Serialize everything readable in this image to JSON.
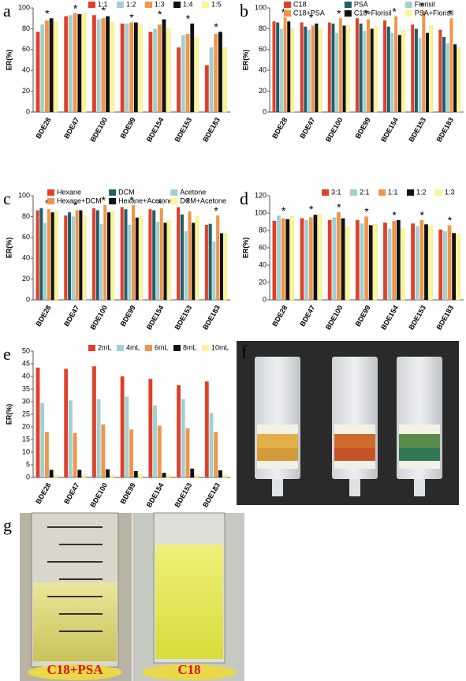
{
  "chart_data": [
    {
      "type": "bar",
      "label": "a",
      "ylabel": "ER(%)",
      "categories": [
        "BDE28",
        "BDE47",
        "BDE100",
        "BDE99",
        "BDE154",
        "BDE153",
        "BDE183"
      ],
      "series": [
        {
          "name": "1:1",
          "color": "#e0402a",
          "values": [
            77,
            92,
            93,
            85,
            77,
            62,
            45
          ]
        },
        {
          "name": "1:2",
          "color": "#9fd0d3",
          "values": [
            84,
            93,
            89,
            85,
            80,
            74,
            62
          ]
        },
        {
          "name": "1:3",
          "color": "#f0954a",
          "values": [
            88,
            95,
            90,
            86,
            84,
            75,
            75
          ]
        },
        {
          "name": "1:4",
          "color": "#111111",
          "values": [
            90,
            94,
            92,
            86,
            89,
            85,
            77
          ]
        },
        {
          "name": "1:5",
          "color": "#fbf59a",
          "values": [
            86,
            95,
            86,
            84,
            80,
            72,
            62
          ]
        }
      ],
      "annotations": [
        "*",
        "*",
        "*",
        "*",
        "*",
        "*",
        "*"
      ],
      "ylim": [
        0,
        100
      ],
      "yticks": [
        0,
        20,
        40,
        60,
        80,
        100
      ]
    },
    {
      "type": "bar",
      "label": "b",
      "ylabel": "ER(%)",
      "categories": [
        "BDE28",
        "BDE47",
        "BDE100",
        "BDE99",
        "BDE154",
        "BDE153",
        "BDE183"
      ],
      "series": [
        {
          "name": "C18",
          "color": "#e0402a",
          "values": [
            87,
            86,
            86,
            90,
            88,
            84,
            79
          ]
        },
        {
          "name": "PSA",
          "color": "#1f5f6a",
          "values": [
            86,
            82,
            85,
            85,
            82,
            80,
            72
          ]
        },
        {
          "name": "Florisil",
          "color": "#9fd0d3",
          "values": [
            80,
            79,
            76,
            78,
            76,
            71,
            66
          ]
        },
        {
          "name": "C18+PSA",
          "color": "#f0954a",
          "values": [
            91,
            83,
            90,
            89,
            92,
            97,
            90
          ]
        },
        {
          "name": "C18+Florisil",
          "color": "#111111",
          "values": [
            87,
            85,
            83,
            80,
            74,
            76,
            65
          ]
        },
        {
          "name": "PSA+Florisil",
          "color": "#fbf59a",
          "values": [
            80,
            80,
            83,
            82,
            78,
            83,
            62
          ]
        }
      ],
      "annotations": [
        "*",
        "*",
        "*",
        "*",
        "*",
        "*",
        "*"
      ],
      "ylim": [
        0,
        100
      ],
      "yticks": [
        0,
        20,
        40,
        60,
        80,
        100
      ]
    },
    {
      "type": "bar",
      "label": "c",
      "ylabel": "ER(%)",
      "categories": [
        "BDE28",
        "BDE47",
        "BDE100",
        "BDE99",
        "BDE154",
        "BDE153",
        "BDE183"
      ],
      "series": [
        {
          "name": "Hexane",
          "color": "#e0402a",
          "values": [
            86,
            81,
            88,
            89,
            87,
            89,
            72
          ]
        },
        {
          "name": "DCM",
          "color": "#1f5f6a",
          "values": [
            88,
            84,
            86,
            87,
            86,
            82,
            73
          ]
        },
        {
          "name": "Acetone",
          "color": "#9fd0d3",
          "values": [
            74,
            80,
            73,
            72,
            75,
            66,
            56
          ]
        },
        {
          "name": "Hexane+DCM",
          "color": "#f0954a",
          "values": [
            87,
            86,
            91,
            91,
            88,
            85,
            81
          ]
        },
        {
          "name": "Hexane+Acetone",
          "color": "#111111",
          "values": [
            84,
            86,
            84,
            79,
            74,
            74,
            64
          ]
        },
        {
          "name": "DCM+Acetone",
          "color": "#fbf59a",
          "values": [
            85,
            81,
            85,
            80,
            76,
            80,
            64
          ]
        }
      ],
      "annotations": [
        "*",
        "*",
        "*",
        "*",
        "*",
        "*",
        "*"
      ],
      "ylim": [
        0,
        100
      ],
      "yticks": [
        0,
        20,
        40,
        60,
        80,
        100
      ]
    },
    {
      "type": "bar",
      "label": "d",
      "ylabel": "ER(%)",
      "categories": [
        "BDE28",
        "BDE47",
        "BDE100",
        "BDE99",
        "BDE154",
        "BDE153",
        "BDE183"
      ],
      "series": [
        {
          "name": "3:1",
          "color": "#e0402a",
          "values": [
            91,
            94,
            92,
            92,
            89,
            88,
            81
          ]
        },
        {
          "name": "2:1",
          "color": "#9fd0d3",
          "values": [
            97,
            92,
            95,
            88,
            82,
            85,
            79
          ]
        },
        {
          "name": "1:1",
          "color": "#f0954a",
          "values": [
            94,
            95,
            101,
            96,
            91,
            92,
            86
          ]
        },
        {
          "name": "1:2",
          "color": "#111111",
          "values": [
            93,
            98,
            94,
            86,
            92,
            87,
            77
          ]
        },
        {
          "name": "1:3",
          "color": "#fbf59a",
          "values": [
            96,
            99,
            84,
            87,
            82,
            85,
            76
          ]
        }
      ],
      "annotations": [
        "*",
        "*",
        "*",
        "*",
        "*",
        "*",
        "*"
      ],
      "ylim": [
        0,
        120
      ],
      "yticks": [
        0,
        20,
        40,
        60,
        80,
        100,
        120
      ]
    },
    {
      "type": "bar",
      "label": "e",
      "ylabel": "ER(%)",
      "categories": [
        "BDE28",
        "BDE47",
        "BDE100",
        "BDE99",
        "BDE154",
        "BDE153",
        "BDE183"
      ],
      "series": [
        {
          "name": "2mL",
          "color": "#e0402a",
          "values": [
            43.5,
            43,
            44,
            40,
            39,
            36.5,
            38
          ]
        },
        {
          "name": "4mL",
          "color": "#9fd0d3",
          "values": [
            29.5,
            30.5,
            31,
            32,
            28.5,
            31,
            25.5
          ]
        },
        {
          "name": "6mL",
          "color": "#f0954a",
          "values": [
            18,
            17.5,
            21,
            19,
            20.5,
            19.5,
            18
          ]
        },
        {
          "name": "8mL",
          "color": "#111111",
          "values": [
            3,
            3,
            3.2,
            2.5,
            1.8,
            3.5,
            2.8
          ]
        },
        {
          "name": "10mL",
          "color": "#fbf59a",
          "values": [
            1,
            1,
            1,
            1.2,
            1,
            1,
            1
          ]
        }
      ],
      "ylim": [
        0,
        50
      ],
      "yticks": [
        0,
        5,
        10,
        15,
        20,
        25,
        30,
        35,
        40,
        45,
        50
      ]
    }
  ],
  "photos": {
    "f": {
      "label": "f"
    },
    "g": {
      "label": "g",
      "captions": [
        "C18+PSA",
        "C18"
      ]
    }
  }
}
